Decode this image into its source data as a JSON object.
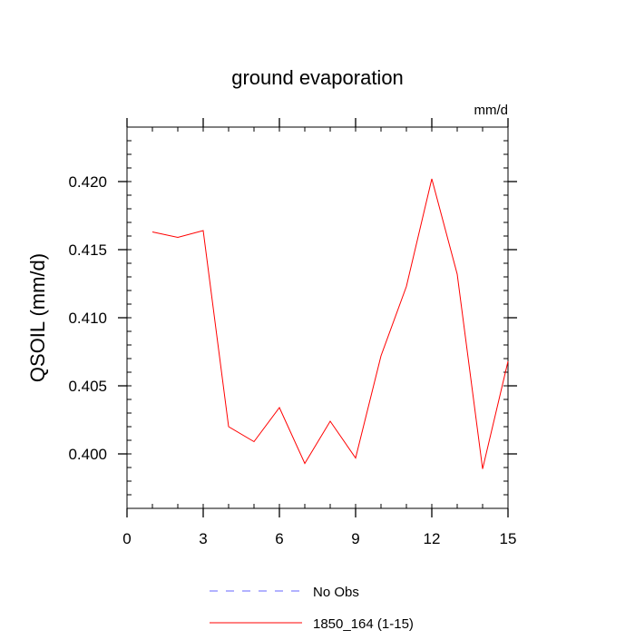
{
  "chart_data": {
    "type": "line",
    "title": "ground evaporation",
    "units_label": "mm/d",
    "xlabel": "",
    "ylabel": "QSOIL  (mm/d)",
    "xlim": [
      0,
      15
    ],
    "ylim": [
      0.396,
      0.424
    ],
    "x_ticks": [
      0,
      3,
      6,
      9,
      12,
      15
    ],
    "x_tick_labels": [
      "0",
      "3",
      "6",
      "9",
      "12",
      "15"
    ],
    "y_ticks": [
      0.4,
      0.405,
      0.41,
      0.415,
      0.42
    ],
    "y_tick_labels": [
      "0.400",
      "0.405",
      "0.410",
      "0.415",
      "0.420"
    ],
    "grid": false,
    "legend_position": "bottom",
    "series": [
      {
        "name": "No Obs",
        "color": "#6666ff",
        "dash": "dashed",
        "x": [],
        "values": []
      },
      {
        "name": "1850_164 (1-15)",
        "color": "#ff0000",
        "dash": "solid",
        "x": [
          1,
          2,
          3,
          4,
          5,
          6,
          7,
          8,
          9,
          10,
          11,
          12,
          13,
          14,
          15
        ],
        "values": [
          0.4163,
          0.4159,
          0.4164,
          0.402,
          0.4009,
          0.4034,
          0.3993,
          0.4024,
          0.3997,
          0.4072,
          0.4123,
          0.4202,
          0.4132,
          0.3989,
          0.4068
        ]
      }
    ]
  }
}
